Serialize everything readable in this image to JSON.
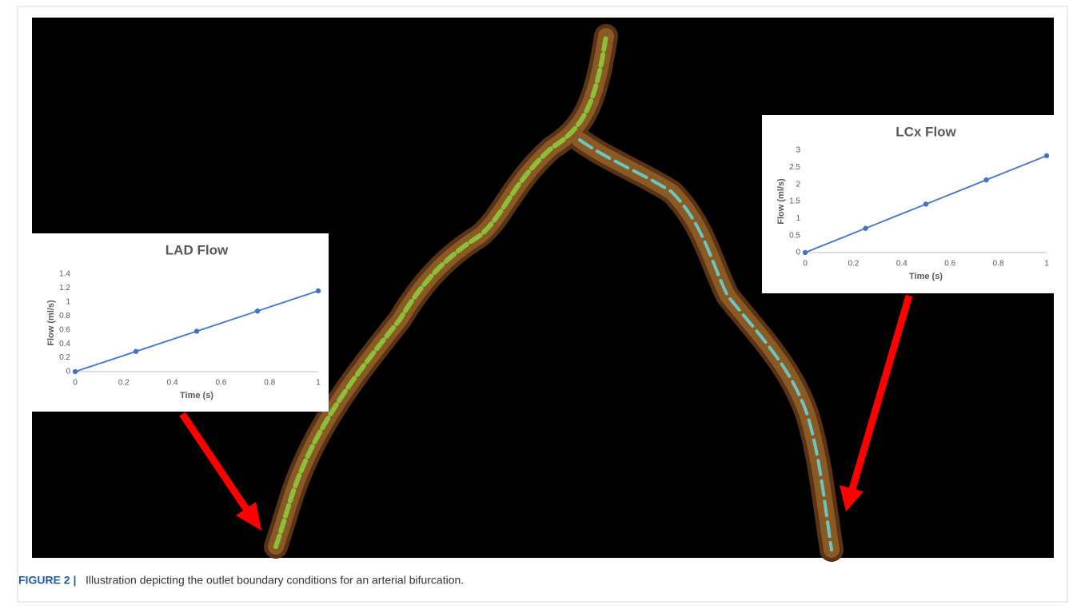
{
  "chart_data": [
    {
      "type": "line",
      "title": "LAD Flow",
      "x_label": "Time (s)",
      "y_label": "Flow (ml/s)",
      "x": [
        0,
        0.25,
        0.5,
        0.75,
        1
      ],
      "values": [
        0,
        0.29,
        0.58,
        0.87,
        1.16
      ],
      "color": "#4472c4",
      "xlim": [
        0,
        1
      ],
      "xticks": [
        0,
        0.2,
        0.4,
        0.6,
        0.8,
        1
      ],
      "ylim": [
        0,
        1.4
      ],
      "yticks": [
        0,
        0.2,
        0.4,
        0.6,
        0.8,
        1,
        1.2,
        1.4
      ]
    },
    {
      "type": "line",
      "title": "LCx Flow",
      "x_label": "Time (s)",
      "y_label": "Flow (ml/s)",
      "x": [
        0,
        0.25,
        0.5,
        0.75,
        1
      ],
      "values": [
        0,
        0.71,
        1.42,
        2.13,
        2.84
      ],
      "color": "#4472c4",
      "xlim": [
        0,
        1
      ],
      "xticks": [
        0,
        0.2,
        0.4,
        0.6,
        0.8,
        1
      ],
      "ylim": [
        0,
        3
      ],
      "yticks": [
        0,
        0.5,
        1,
        1.5,
        2,
        2.5,
        3
      ]
    }
  ],
  "caption": {
    "label": "FIGURE 2 |",
    "text": "Illustration depicting the outlet boundary conditions for an arterial bifurcation."
  }
}
